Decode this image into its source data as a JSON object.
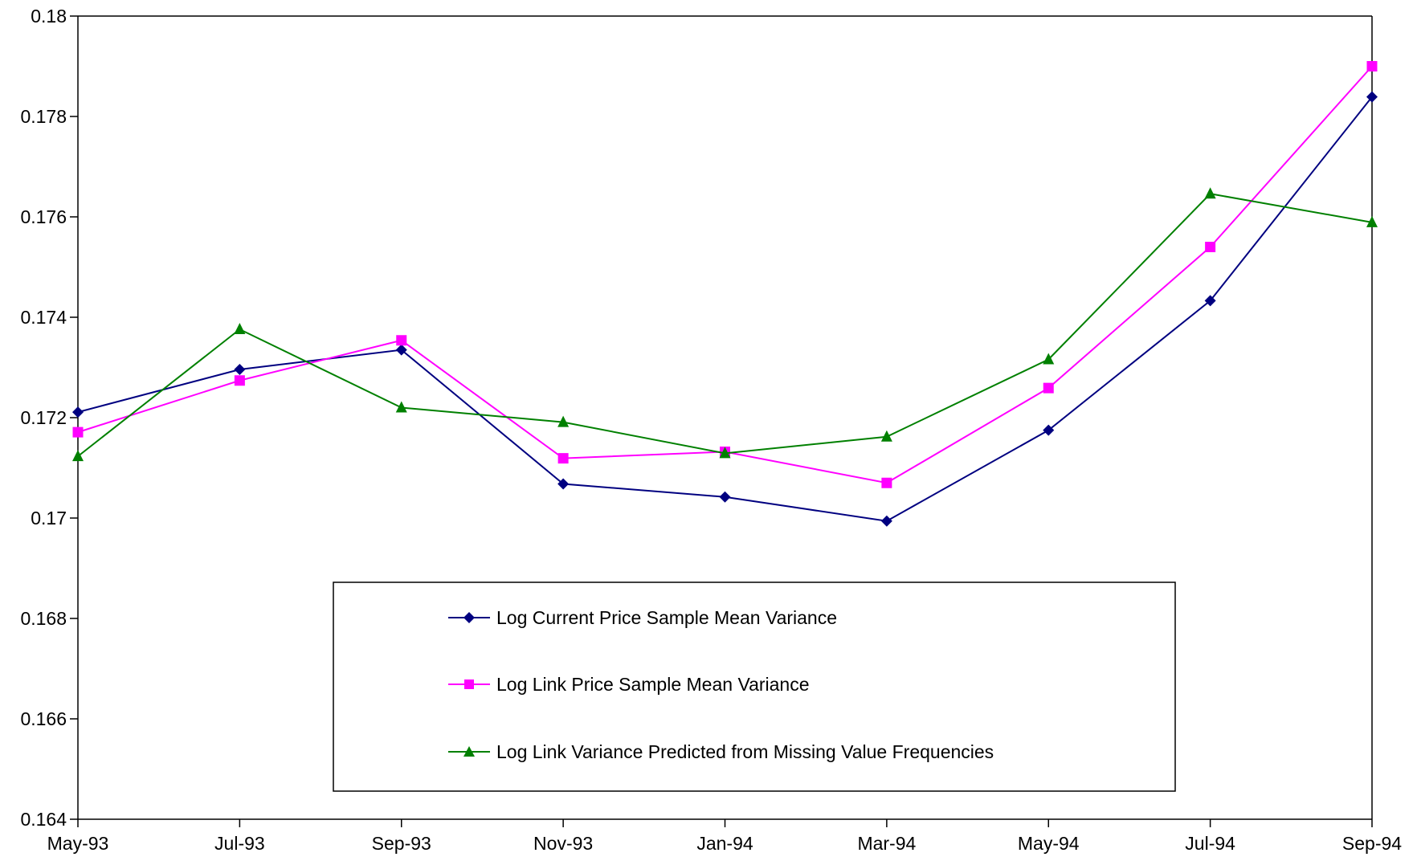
{
  "chart_data": {
    "type": "line",
    "title": "",
    "xlabel": "",
    "ylabel": "",
    "categories": [
      "May-93",
      "Jul-93",
      "Sep-93",
      "Nov-93",
      "Jan-94",
      "Mar-94",
      "May-94",
      "Jul-94",
      "Sep-94"
    ],
    "y_ticks": [
      "0.164",
      "0.166",
      "0.168",
      "0.17",
      "0.172",
      "0.174",
      "0.176",
      "0.178",
      "0.18"
    ],
    "ylim": [
      0.164,
      0.18
    ],
    "grid": false,
    "legend_position": "bottom-center",
    "series": [
      {
        "name": "Log Current Price Sample Mean Variance",
        "color": "#000080",
        "marker": "diamond",
        "values": [
          0.17211,
          0.17296,
          0.17335,
          0.17068,
          0.17042,
          0.16994,
          0.17175,
          0.17433,
          0.17839
        ]
      },
      {
        "name": "Log Link Price Sample Mean Variance",
        "color": "#ff00ff",
        "marker": "square",
        "values": [
          0.17171,
          0.17274,
          0.17354,
          0.17119,
          0.17132,
          0.1707,
          0.17259,
          0.1754,
          0.179
        ]
      },
      {
        "name": "Log Link Variance Predicted from Missing Value Frequencies",
        "color": "#008000",
        "marker": "triangle",
        "values": [
          0.17123,
          0.17376,
          0.1722,
          0.17191,
          0.17129,
          0.17162,
          0.17316,
          0.17646,
          0.17589
        ]
      }
    ]
  }
}
